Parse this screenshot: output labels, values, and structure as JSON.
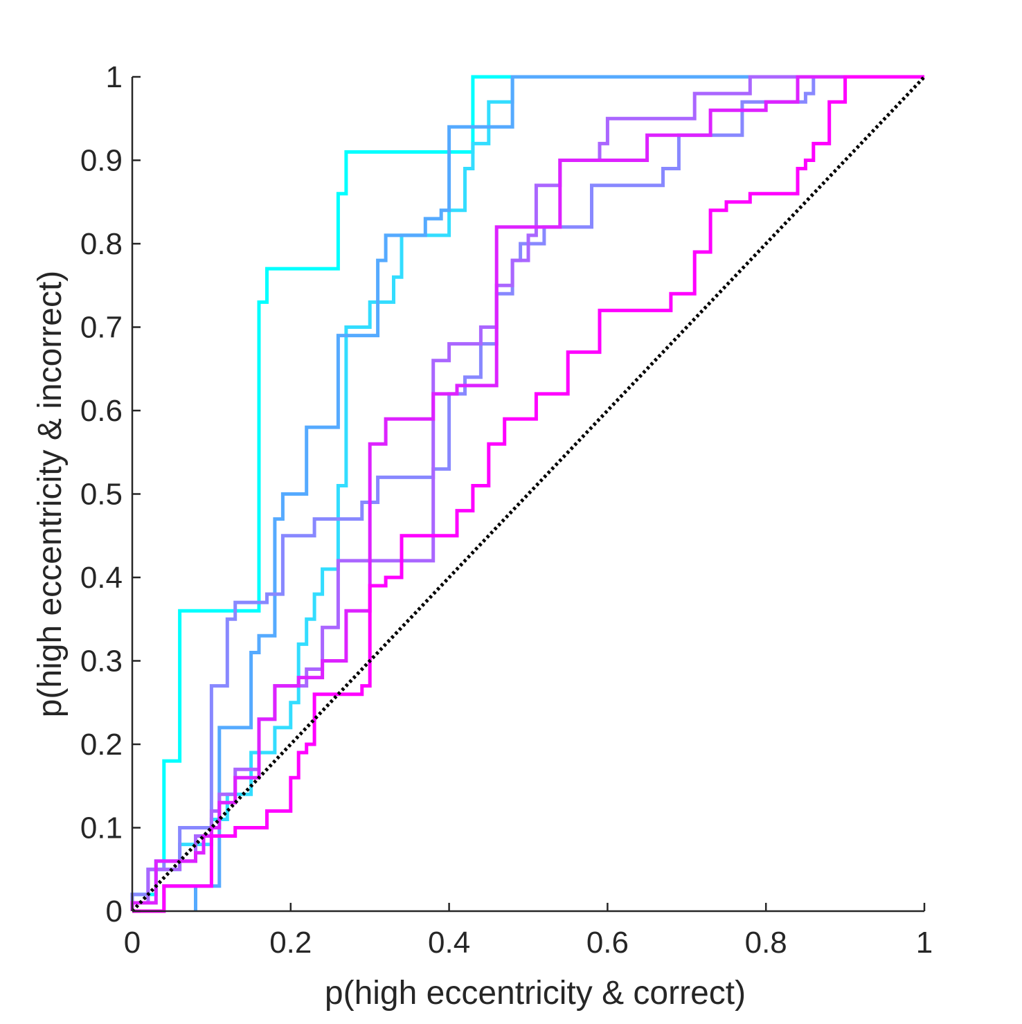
{
  "chart_data": {
    "type": "line",
    "xlabel": "p(high eccentricity & correct)",
    "ylabel": "p(high eccentricity & incorrect)",
    "xlim": [
      0,
      1
    ],
    "ylim": [
      0,
      1
    ],
    "xticks": [
      0,
      0.2,
      0.4,
      0.6,
      0.8,
      1
    ],
    "yticks": [
      0,
      0.1,
      0.2,
      0.3,
      0.4,
      0.5,
      0.6,
      0.7,
      0.8,
      0.9,
      1
    ],
    "xtick_labels": [
      "0",
      "0.2",
      "0.4",
      "0.6",
      "0.8",
      "1"
    ],
    "ytick_labels": [
      "0",
      "0.1",
      "0.2",
      "0.3",
      "0.4",
      "0.5",
      "0.6",
      "0.7",
      "0.8",
      "0.9",
      "1"
    ],
    "grid": false,
    "legend": "none",
    "reference_line": {
      "style": "dotted",
      "color": "#000000",
      "points": [
        [
          0,
          0
        ],
        [
          1,
          1
        ]
      ]
    },
    "series": [
      {
        "color": "#00ffff",
        "points": [
          [
            0,
            0
          ],
          [
            0,
            0.02
          ],
          [
            0.03,
            0.02
          ],
          [
            0.03,
            0.06
          ],
          [
            0.04,
            0.06
          ],
          [
            0.04,
            0.18
          ],
          [
            0.06,
            0.18
          ],
          [
            0.06,
            0.36
          ],
          [
            0.16,
            0.36
          ],
          [
            0.16,
            0.73
          ],
          [
            0.17,
            0.73
          ],
          [
            0.17,
            0.77
          ],
          [
            0.26,
            0.77
          ],
          [
            0.26,
            0.86
          ],
          [
            0.27,
            0.86
          ],
          [
            0.27,
            0.91
          ],
          [
            0.43,
            0.91
          ],
          [
            0.43,
            1
          ],
          [
            1,
            1
          ]
        ]
      },
      {
        "color": "#33ddff",
        "points": [
          [
            0,
            0
          ],
          [
            0,
            0.01
          ],
          [
            0.02,
            0.01
          ],
          [
            0.02,
            0.05
          ],
          [
            0.06,
            0.05
          ],
          [
            0.06,
            0.08
          ],
          [
            0.1,
            0.08
          ],
          [
            0.1,
            0.11
          ],
          [
            0.12,
            0.11
          ],
          [
            0.12,
            0.14
          ],
          [
            0.15,
            0.14
          ],
          [
            0.15,
            0.19
          ],
          [
            0.18,
            0.19
          ],
          [
            0.18,
            0.22
          ],
          [
            0.2,
            0.22
          ],
          [
            0.2,
            0.25
          ],
          [
            0.21,
            0.25
          ],
          [
            0.21,
            0.32
          ],
          [
            0.22,
            0.32
          ],
          [
            0.22,
            0.35
          ],
          [
            0.23,
            0.35
          ],
          [
            0.23,
            0.38
          ],
          [
            0.24,
            0.38
          ],
          [
            0.24,
            0.41
          ],
          [
            0.26,
            0.41
          ],
          [
            0.26,
            0.51
          ],
          [
            0.27,
            0.51
          ],
          [
            0.27,
            0.7
          ],
          [
            0.3,
            0.7
          ],
          [
            0.3,
            0.73
          ],
          [
            0.33,
            0.73
          ],
          [
            0.33,
            0.76
          ],
          [
            0.34,
            0.76
          ],
          [
            0.34,
            0.81
          ],
          [
            0.4,
            0.81
          ],
          [
            0.4,
            0.84
          ],
          [
            0.42,
            0.84
          ],
          [
            0.42,
            0.89
          ],
          [
            0.43,
            0.89
          ],
          [
            0.43,
            0.92
          ],
          [
            0.45,
            0.92
          ],
          [
            0.45,
            0.97
          ],
          [
            0.48,
            0.97
          ],
          [
            0.48,
            1
          ],
          [
            1,
            1
          ]
        ]
      },
      {
        "color": "#55aaff",
        "points": [
          [
            0,
            0
          ],
          [
            0.04,
            0
          ],
          [
            0.04,
            0.03
          ],
          [
            0.08,
            0.03
          ],
          [
            0.08,
            0
          ],
          [
            0.08,
            0.03
          ],
          [
            0.11,
            0.03
          ],
          [
            0.11,
            0.22
          ],
          [
            0.15,
            0.22
          ],
          [
            0.15,
            0.31
          ],
          [
            0.16,
            0.31
          ],
          [
            0.16,
            0.33
          ],
          [
            0.18,
            0.33
          ],
          [
            0.18,
            0.47
          ],
          [
            0.19,
            0.47
          ],
          [
            0.19,
            0.5
          ],
          [
            0.22,
            0.5
          ],
          [
            0.22,
            0.58
          ],
          [
            0.26,
            0.58
          ],
          [
            0.26,
            0.69
          ],
          [
            0.31,
            0.69
          ],
          [
            0.31,
            0.78
          ],
          [
            0.32,
            0.78
          ],
          [
            0.32,
            0.81
          ],
          [
            0.37,
            0.81
          ],
          [
            0.37,
            0.83
          ],
          [
            0.39,
            0.83
          ],
          [
            0.39,
            0.84
          ],
          [
            0.4,
            0.84
          ],
          [
            0.4,
            0.94
          ],
          [
            0.48,
            0.94
          ],
          [
            0.48,
            1
          ],
          [
            1,
            1
          ]
        ]
      },
      {
        "color": "#8888ff",
        "points": [
          [
            0,
            0
          ],
          [
            0,
            0.02
          ],
          [
            0.02,
            0.02
          ],
          [
            0.02,
            0.05
          ],
          [
            0.04,
            0.05
          ],
          [
            0.04,
            0.06
          ],
          [
            0.06,
            0.06
          ],
          [
            0.06,
            0.1
          ],
          [
            0.1,
            0.1
          ],
          [
            0.1,
            0.27
          ],
          [
            0.12,
            0.27
          ],
          [
            0.12,
            0.35
          ],
          [
            0.13,
            0.35
          ],
          [
            0.13,
            0.37
          ],
          [
            0.17,
            0.37
          ],
          [
            0.17,
            0.38
          ],
          [
            0.19,
            0.38
          ],
          [
            0.19,
            0.45
          ],
          [
            0.23,
            0.45
          ],
          [
            0.23,
            0.47
          ],
          [
            0.29,
            0.47
          ],
          [
            0.29,
            0.49
          ],
          [
            0.31,
            0.49
          ],
          [
            0.31,
            0.52
          ],
          [
            0.38,
            0.52
          ],
          [
            0.38,
            0.53
          ],
          [
            0.4,
            0.53
          ],
          [
            0.4,
            0.62
          ],
          [
            0.42,
            0.62
          ],
          [
            0.42,
            0.64
          ],
          [
            0.44,
            0.64
          ],
          [
            0.44,
            0.68
          ],
          [
            0.46,
            0.68
          ],
          [
            0.46,
            0.74
          ],
          [
            0.48,
            0.74
          ],
          [
            0.48,
            0.78
          ],
          [
            0.49,
            0.78
          ],
          [
            0.49,
            0.8
          ],
          [
            0.52,
            0.8
          ],
          [
            0.52,
            0.82
          ],
          [
            0.58,
            0.82
          ],
          [
            0.58,
            0.87
          ],
          [
            0.67,
            0.87
          ],
          [
            0.67,
            0.89
          ],
          [
            0.69,
            0.89
          ],
          [
            0.69,
            0.93
          ],
          [
            0.77,
            0.93
          ],
          [
            0.77,
            0.97
          ],
          [
            0.85,
            0.97
          ],
          [
            0.85,
            0.98
          ],
          [
            0.86,
            0.98
          ],
          [
            0.86,
            1
          ],
          [
            1,
            1
          ]
        ]
      },
      {
        "color": "#aa66ff",
        "points": [
          [
            0,
            0
          ],
          [
            0,
            0.01
          ],
          [
            0.02,
            0.01
          ],
          [
            0.02,
            0.05
          ],
          [
            0.06,
            0.05
          ],
          [
            0.06,
            0.06
          ],
          [
            0.08,
            0.06
          ],
          [
            0.08,
            0.09
          ],
          [
            0.1,
            0.09
          ],
          [
            0.1,
            0.12
          ],
          [
            0.11,
            0.12
          ],
          [
            0.11,
            0.14
          ],
          [
            0.13,
            0.14
          ],
          [
            0.13,
            0.17
          ],
          [
            0.16,
            0.17
          ],
          [
            0.16,
            0.23
          ],
          [
            0.18,
            0.23
          ],
          [
            0.18,
            0.27
          ],
          [
            0.22,
            0.27
          ],
          [
            0.22,
            0.29
          ],
          [
            0.24,
            0.29
          ],
          [
            0.24,
            0.34
          ],
          [
            0.26,
            0.34
          ],
          [
            0.26,
            0.42
          ],
          [
            0.38,
            0.42
          ],
          [
            0.38,
            0.66
          ],
          [
            0.4,
            0.66
          ],
          [
            0.4,
            0.68
          ],
          [
            0.44,
            0.68
          ],
          [
            0.44,
            0.7
          ],
          [
            0.46,
            0.7
          ],
          [
            0.46,
            0.75
          ],
          [
            0.48,
            0.75
          ],
          [
            0.48,
            0.78
          ],
          [
            0.5,
            0.78
          ],
          [
            0.5,
            0.81
          ],
          [
            0.51,
            0.81
          ],
          [
            0.51,
            0.87
          ],
          [
            0.54,
            0.87
          ],
          [
            0.54,
            0.9
          ],
          [
            0.59,
            0.9
          ],
          [
            0.59,
            0.92
          ],
          [
            0.6,
            0.92
          ],
          [
            0.6,
            0.95
          ],
          [
            0.71,
            0.95
          ],
          [
            0.71,
            0.98
          ],
          [
            0.78,
            0.98
          ],
          [
            0.78,
            1
          ],
          [
            1,
            1
          ]
        ]
      },
      {
        "color": "#dd22ff",
        "points": [
          [
            0,
            0
          ],
          [
            0,
            0.01
          ],
          [
            0.03,
            0.01
          ],
          [
            0.03,
            0.06
          ],
          [
            0.08,
            0.06
          ],
          [
            0.08,
            0.07
          ],
          [
            0.09,
            0.07
          ],
          [
            0.09,
            0.09
          ],
          [
            0.1,
            0.09
          ],
          [
            0.1,
            0.1
          ],
          [
            0.11,
            0.1
          ],
          [
            0.11,
            0.13
          ],
          [
            0.13,
            0.13
          ],
          [
            0.13,
            0.16
          ],
          [
            0.16,
            0.16
          ],
          [
            0.16,
            0.23
          ],
          [
            0.18,
            0.23
          ],
          [
            0.18,
            0.27
          ],
          [
            0.21,
            0.27
          ],
          [
            0.21,
            0.28
          ],
          [
            0.24,
            0.28
          ],
          [
            0.24,
            0.3
          ],
          [
            0.27,
            0.3
          ],
          [
            0.27,
            0.36
          ],
          [
            0.3,
            0.36
          ],
          [
            0.3,
            0.56
          ],
          [
            0.32,
            0.56
          ],
          [
            0.32,
            0.59
          ],
          [
            0.38,
            0.59
          ],
          [
            0.38,
            0.62
          ],
          [
            0.41,
            0.62
          ],
          [
            0.41,
            0.63
          ],
          [
            0.46,
            0.63
          ],
          [
            0.46,
            0.82
          ],
          [
            0.54,
            0.82
          ],
          [
            0.54,
            0.9
          ],
          [
            0.65,
            0.9
          ],
          [
            0.65,
            0.93
          ],
          [
            0.73,
            0.93
          ],
          [
            0.73,
            0.96
          ],
          [
            0.8,
            0.96
          ],
          [
            0.8,
            0.97
          ],
          [
            0.84,
            0.97
          ],
          [
            0.84,
            1
          ],
          [
            1,
            1
          ]
        ]
      },
      {
        "color": "#ff00ff",
        "points": [
          [
            0,
            0
          ],
          [
            0.04,
            0
          ],
          [
            0.04,
            0.03
          ],
          [
            0.1,
            0.03
          ],
          [
            0.1,
            0.09
          ],
          [
            0.13,
            0.09
          ],
          [
            0.13,
            0.1
          ],
          [
            0.17,
            0.1
          ],
          [
            0.17,
            0.12
          ],
          [
            0.2,
            0.12
          ],
          [
            0.2,
            0.16
          ],
          [
            0.21,
            0.16
          ],
          [
            0.21,
            0.19
          ],
          [
            0.22,
            0.19
          ],
          [
            0.22,
            0.2
          ],
          [
            0.23,
            0.2
          ],
          [
            0.23,
            0.26
          ],
          [
            0.26,
            0.26
          ],
          [
            0.26,
            0.26
          ],
          [
            0.29,
            0.26
          ],
          [
            0.29,
            0.27
          ],
          [
            0.3,
            0.27
          ],
          [
            0.3,
            0.39
          ],
          [
            0.32,
            0.39
          ],
          [
            0.32,
            0.4
          ],
          [
            0.34,
            0.4
          ],
          [
            0.34,
            0.45
          ],
          [
            0.41,
            0.45
          ],
          [
            0.41,
            0.48
          ],
          [
            0.43,
            0.48
          ],
          [
            0.43,
            0.51
          ],
          [
            0.45,
            0.51
          ],
          [
            0.45,
            0.56
          ],
          [
            0.47,
            0.56
          ],
          [
            0.47,
            0.59
          ],
          [
            0.51,
            0.59
          ],
          [
            0.51,
            0.62
          ],
          [
            0.55,
            0.62
          ],
          [
            0.55,
            0.67
          ],
          [
            0.59,
            0.67
          ],
          [
            0.59,
            0.72
          ],
          [
            0.68,
            0.72
          ],
          [
            0.68,
            0.74
          ],
          [
            0.71,
            0.74
          ],
          [
            0.71,
            0.79
          ],
          [
            0.73,
            0.79
          ],
          [
            0.73,
            0.84
          ],
          [
            0.75,
            0.84
          ],
          [
            0.75,
            0.85
          ],
          [
            0.78,
            0.85
          ],
          [
            0.78,
            0.86
          ],
          [
            0.84,
            0.86
          ],
          [
            0.84,
            0.89
          ],
          [
            0.85,
            0.89
          ],
          [
            0.85,
            0.9
          ],
          [
            0.86,
            0.9
          ],
          [
            0.86,
            0.92
          ],
          [
            0.88,
            0.92
          ],
          [
            0.88,
            0.97
          ],
          [
            0.9,
            0.97
          ],
          [
            0.9,
            1
          ],
          [
            1,
            1
          ]
        ]
      }
    ]
  }
}
